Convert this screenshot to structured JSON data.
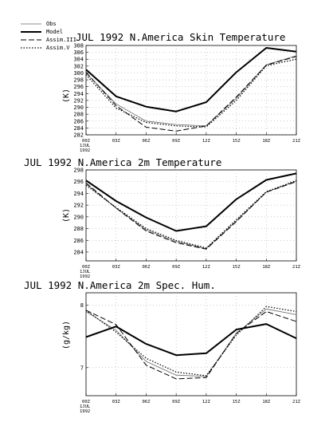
{
  "legend": [
    {
      "name": "Obs",
      "style": "thin"
    },
    {
      "name": "Model",
      "style": "solid"
    },
    {
      "name": "Assim.III",
      "style": "dashed"
    },
    {
      "name": "Assim.V",
      "style": "dotted"
    }
  ],
  "x_sublabel": [
    "1JUL",
    "1992"
  ],
  "chart_data": [
    {
      "type": "line",
      "title": "JUL 1992 N.America Skin Temperature",
      "ylabel": "(K)",
      "x": [
        "00Z",
        "03Z",
        "06Z",
        "09Z",
        "12Z",
        "15Z",
        "18Z",
        "21Z"
      ],
      "ylim": [
        282,
        308
      ],
      "yticks": [
        282,
        284,
        286,
        288,
        290,
        292,
        294,
        296,
        298,
        300,
        302,
        304,
        306,
        308
      ],
      "grid": true,
      "series": [
        {
          "name": "Model",
          "values": [
            301.0,
            293.2,
            290.2,
            288.8,
            291.5,
            300.2,
            307.3,
            306.2
          ]
        },
        {
          "name": "Assim.III",
          "values": [
            300.2,
            290.5,
            284.2,
            283.1,
            284.6,
            293.0,
            302.3,
            304.8
          ]
        },
        {
          "name": "Assim.V",
          "values": [
            299.5,
            289.8,
            285.6,
            284.6,
            284.3,
            292.0,
            302.1,
            304.0
          ]
        },
        {
          "name": "Obs",
          "values": [
            300.0,
            291.0,
            286.0,
            285.0,
            284.6,
            292.6,
            302.4,
            305.0
          ]
        }
      ]
    },
    {
      "type": "line",
      "title": "JUL 1992 N.America 2m Temperature",
      "ylabel": "(K)",
      "x": [
        "00Z",
        "03Z",
        "06Z",
        "09Z",
        "12Z",
        "15Z",
        "18Z",
        "21Z"
      ],
      "ylim": [
        282.5,
        298
      ],
      "yticks": [
        284,
        286,
        288,
        290,
        292,
        294,
        296,
        298
      ],
      "grid": true,
      "series": [
        {
          "name": "Model",
          "values": [
            296.2,
            292.7,
            289.9,
            287.6,
            288.4,
            293.0,
            296.3,
            297.4
          ]
        },
        {
          "name": "Assim.III",
          "values": [
            295.8,
            291.5,
            287.6,
            285.6,
            284.5,
            289.2,
            294.2,
            296.0
          ]
        },
        {
          "name": "Assim.V",
          "values": [
            295.4,
            291.6,
            288.0,
            286.0,
            284.7,
            289.5,
            294.3,
            296.2
          ]
        },
        {
          "name": "Obs",
          "values": [
            295.6,
            291.5,
            287.8,
            285.8,
            284.6,
            289.3,
            294.2,
            296.1
          ]
        }
      ]
    },
    {
      "type": "line",
      "title": "JUL 1992 N.America 2m Spec. Hum.",
      "ylabel": "(g/kg)",
      "x": [
        "00Z",
        "03Z",
        "06Z",
        "09Z",
        "12Z",
        "15Z",
        "18Z",
        "21Z"
      ],
      "ylim": [
        6.55,
        8.2
      ],
      "yticks": [
        7,
        8
      ],
      "grid": true,
      "series": [
        {
          "name": "Model",
          "values": [
            7.49,
            7.66,
            7.38,
            7.2,
            7.23,
            7.61,
            7.7,
            7.47
          ]
        },
        {
          "name": "Assim.III",
          "values": [
            7.92,
            7.69,
            7.04,
            6.82,
            6.84,
            7.55,
            7.9,
            7.74
          ]
        },
        {
          "name": "Assim.V",
          "values": [
            7.92,
            7.57,
            7.15,
            6.93,
            6.87,
            7.52,
            7.98,
            7.9
          ]
        },
        {
          "name": "Obs",
          "values": [
            7.9,
            7.6,
            7.1,
            6.88,
            6.86,
            7.55,
            7.94,
            7.85
          ]
        }
      ]
    }
  ]
}
